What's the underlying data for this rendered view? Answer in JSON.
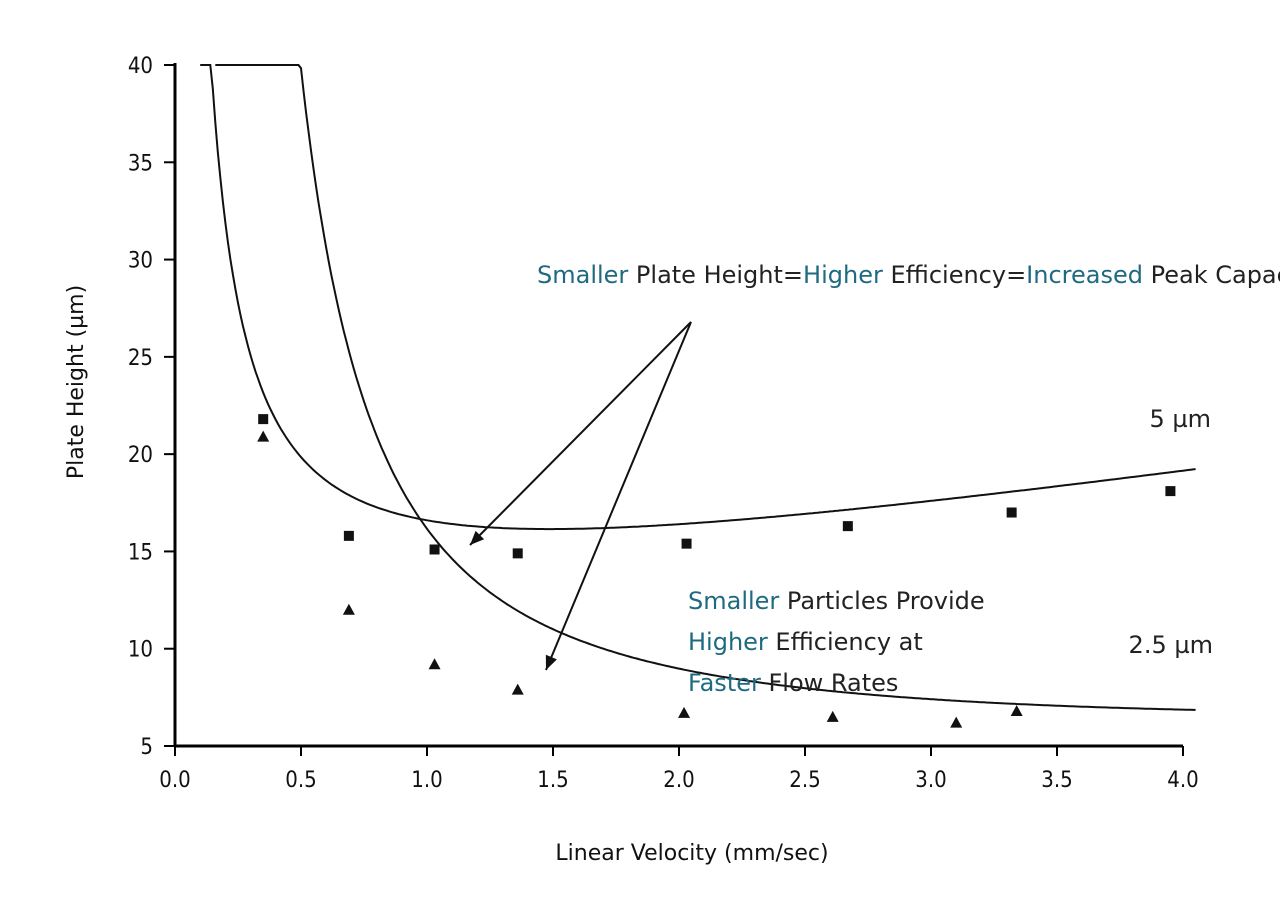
{
  "chart_data": {
    "type": "scatter",
    "xlabel": "Linear Velocity (mm/sec)",
    "ylabel": "Plate Height (µm)",
    "xlim": [
      0.0,
      4.0
    ],
    "ylim": [
      5,
      40
    ],
    "x_ticks": [
      "0.0",
      "0.5",
      "1.0",
      "1.5",
      "2.0",
      "2.5",
      "3.0",
      "3.5",
      "4.0"
    ],
    "y_ticks": [
      "5",
      "10",
      "15",
      "20",
      "25",
      "30",
      "35",
      "40"
    ],
    "grid": false,
    "series": [
      {
        "name": "5 µm",
        "marker": "square",
        "points": [
          {
            "x": 0.35,
            "y": 21.8
          },
          {
            "x": 0.69,
            "y": 15.8
          },
          {
            "x": 1.03,
            "y": 15.1
          },
          {
            "x": 1.36,
            "y": 14.9
          },
          {
            "x": 2.03,
            "y": 15.4
          },
          {
            "x": 2.67,
            "y": 16.3
          },
          {
            "x": 3.32,
            "y": 17.0
          },
          {
            "x": 3.95,
            "y": 18.1
          }
        ]
      },
      {
        "name": "2.5 µm",
        "marker": "triangle",
        "points": [
          {
            "x": 0.35,
            "y": 20.9
          },
          {
            "x": 0.69,
            "y": 12.0
          },
          {
            "x": 1.03,
            "y": 9.2
          },
          {
            "x": 1.36,
            "y": 7.9
          },
          {
            "x": 2.02,
            "y": 6.7
          },
          {
            "x": 2.61,
            "y": 6.5
          },
          {
            "x": 3.1,
            "y": 6.2
          },
          {
            "x": 3.34,
            "y": 6.8
          }
        ]
      }
    ],
    "annotations": {
      "top": [
        {
          "text": "Smaller",
          "accent": true
        },
        {
          "text": " Plate Height=",
          "accent": false
        },
        {
          "text": "Higher",
          "accent": true
        },
        {
          "text": " Efficiency=",
          "accent": false
        },
        {
          "text": "Increased",
          "accent": true
        },
        {
          "text": " Peak Capacity",
          "accent": false
        }
      ],
      "middle": [
        [
          {
            "text": "Smaller",
            "accent": true
          },
          {
            "text": " Particles Provide",
            "accent": false
          }
        ],
        [
          {
            "text": "Higher",
            "accent": true
          },
          {
            "text": " Efficiency at",
            "accent": false
          }
        ],
        [
          {
            "text": "Faster",
            "accent": true
          },
          {
            "text": " Flow Rates",
            "accent": false
          }
        ]
      ]
    },
    "colors": {
      "accent": "#1f6a80",
      "text": "#222222",
      "line": "#111111"
    }
  }
}
